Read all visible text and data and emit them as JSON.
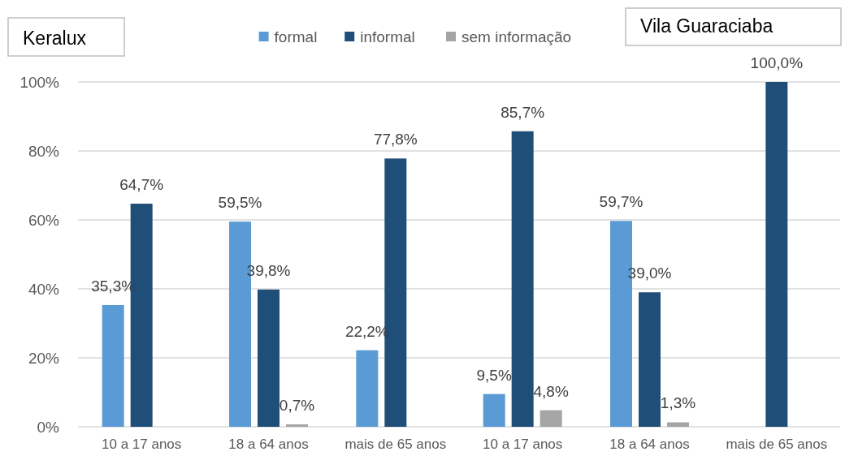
{
  "chart_data": {
    "type": "bar",
    "categories": [
      "10 a 17 anos",
      "18 a 64 anos",
      "mais de 65 anos",
      "10 a 17 anos",
      "18 a 64 anos",
      "mais de 65 anos"
    ],
    "series": [
      {
        "name": "formal",
        "color": "#5b9bd5",
        "values": [
          35.3,
          59.5,
          22.2,
          9.5,
          59.7,
          null
        ],
        "value_labels": [
          "35,3%",
          "59,5%",
          "22,2%",
          "9,5%",
          "59,7%",
          null
        ]
      },
      {
        "name": "informal",
        "color": "#1f4e79",
        "values": [
          64.7,
          39.8,
          77.8,
          85.7,
          39.0,
          100.0
        ],
        "value_labels": [
          "64,7%",
          "39,8%",
          "77,8%",
          "85,7%",
          "39,0%",
          "100,0%"
        ]
      },
      {
        "name": "sem informação",
        "color": "#a5a5a5",
        "values": [
          null,
          0.7,
          null,
          4.8,
          1.3,
          null
        ],
        "value_labels": [
          null,
          "0,7%",
          null,
          "4,8%",
          "1,3%",
          null
        ]
      }
    ],
    "ylim": [
      0,
      100
    ],
    "yticks": [
      {
        "value": 0,
        "label": "0%"
      },
      {
        "value": 20,
        "label": "20%"
      },
      {
        "value": 40,
        "label": "40%"
      },
      {
        "value": 60,
        "label": "60%"
      },
      {
        "value": 80,
        "label": "80%"
      },
      {
        "value": 100,
        "label": "100%"
      }
    ],
    "grid": "y",
    "legend": "top",
    "annotations": [
      "Keralux",
      "Vila Guaraciaba"
    ]
  }
}
